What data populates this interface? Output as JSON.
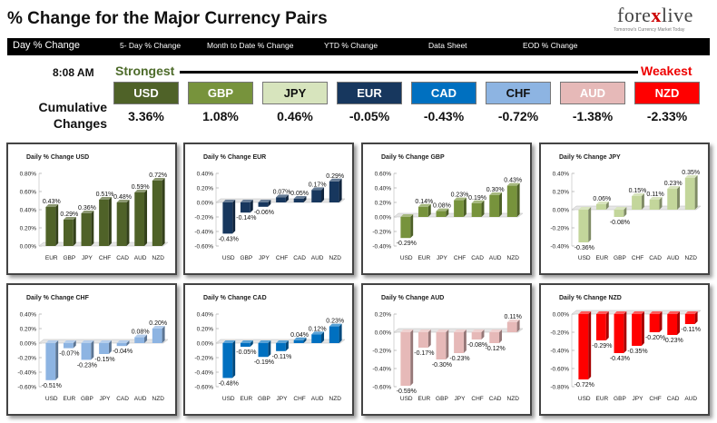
{
  "header": {
    "title": "% Change for the Major Currency Pairs",
    "logo_text_a": "fore",
    "logo_text_x": "x",
    "logo_text_b": "live",
    "logo_sub": "Tomorrow's Currency Market Today"
  },
  "nav": {
    "items": [
      "Day % Change",
      "5- Day % Change",
      "Month to Date % Change",
      "YTD % Change",
      "Data Sheet",
      "EOD % Change"
    ]
  },
  "summary": {
    "time": "8:08 AM",
    "strongest": "Strongest",
    "weakest": "Weakest",
    "cumulative_label_1": "Cumulative",
    "cumulative_label_2": "Changes",
    "currencies": [
      {
        "name": "USD",
        "value": "3.36%",
        "bg": "#4f6228",
        "fg": "#ffffff"
      },
      {
        "name": "GBP",
        "value": "1.08%",
        "bg": "#77933c",
        "fg": "#ffffff"
      },
      {
        "name": "JPY",
        "value": "0.46%",
        "bg": "#d7e4bd",
        "fg": "#111111"
      },
      {
        "name": "EUR",
        "value": "-0.05%",
        "bg": "#17375e",
        "fg": "#ffffff"
      },
      {
        "name": "CAD",
        "value": "-0.43%",
        "bg": "#0070c0",
        "fg": "#ffffff"
      },
      {
        "name": "CHF",
        "value": "-0.72%",
        "bg": "#8db4e2",
        "fg": "#111111"
      },
      {
        "name": "AUD",
        "value": "-1.38%",
        "bg": "#e6b9b8",
        "fg": "#ffffff"
      },
      {
        "name": "NZD",
        "value": "-2.33%",
        "bg": "#ff0000",
        "fg": "#ffffff"
      }
    ]
  },
  "chart_data": [
    {
      "type": "bar",
      "title": "Daily % Change USD",
      "color": "#4f6228",
      "categories": [
        "EUR",
        "GBP",
        "JPY",
        "CHF",
        "CAD",
        "AUD",
        "NZD"
      ],
      "values": [
        0.43,
        0.29,
        0.36,
        0.51,
        0.48,
        0.59,
        0.72
      ],
      "labels": [
        "0.43%",
        "0.29%",
        "0.36%",
        "0.51%",
        "0.48%",
        "0.59%",
        "0.72%"
      ],
      "ylim": [
        0,
        0.8
      ],
      "ticks": [
        "0.00%",
        "0.20%",
        "0.40%",
        "0.60%",
        "0.80%"
      ],
      "tick_values": [
        0,
        0.2,
        0.4,
        0.6,
        0.8
      ]
    },
    {
      "type": "bar",
      "title": "Daily % Change EUR",
      "color": "#17375e",
      "categories": [
        "USD",
        "GBP",
        "JPY",
        "CHF",
        "CAD",
        "AUD",
        "NZD"
      ],
      "values": [
        -0.43,
        -0.14,
        -0.06,
        0.07,
        0.05,
        0.17,
        0.29
      ],
      "labels": [
        "-0.43%",
        "-0.14%",
        "-0.06%",
        "0.07%",
        "0.05%",
        "0.17%",
        "0.29%"
      ],
      "ylim": [
        -0.6,
        0.4
      ],
      "ticks": [
        "-0.60%",
        "-0.40%",
        "-0.20%",
        "0.00%",
        "0.20%",
        "0.40%"
      ],
      "tick_values": [
        -0.6,
        -0.4,
        -0.2,
        0,
        0.2,
        0.4
      ]
    },
    {
      "type": "bar",
      "title": "Daily % Change GBP",
      "color": "#77933c",
      "categories": [
        "USD",
        "EUR",
        "JPY",
        "CHF",
        "CAD",
        "AUD",
        "NZD"
      ],
      "values": [
        -0.29,
        0.14,
        0.08,
        0.23,
        0.19,
        0.3,
        0.43
      ],
      "labels": [
        "-0.29%",
        "0.14%",
        "0.08%",
        "0.23%",
        "0.19%",
        "0.30%",
        "0.43%"
      ],
      "ylim": [
        -0.4,
        0.6
      ],
      "ticks": [
        "-0.40%",
        "-0.20%",
        "0.00%",
        "0.20%",
        "0.40%",
        "0.60%"
      ],
      "tick_values": [
        -0.4,
        -0.2,
        0,
        0.2,
        0.4,
        0.6
      ]
    },
    {
      "type": "bar",
      "title": "Daily % Change JPY",
      "color": "#c3d69b",
      "categories": [
        "USD",
        "EUR",
        "GBP",
        "CHF",
        "CAD",
        "AUD",
        "NZD"
      ],
      "values": [
        -0.36,
        0.06,
        -0.08,
        0.15,
        0.11,
        0.23,
        0.35
      ],
      "labels": [
        "-0.36%",
        "0.06%",
        "-0.08%",
        "0.15%",
        "0.11%",
        "0.23%",
        "0.35%"
      ],
      "ylim": [
        -0.4,
        0.4
      ],
      "ticks": [
        "-0.40%",
        "-0.20%",
        "0.00%",
        "0.20%",
        "0.40%"
      ],
      "tick_values": [
        -0.4,
        -0.2,
        0,
        0.2,
        0.4
      ]
    },
    {
      "type": "bar",
      "title": "Daily % Change CHF",
      "color": "#8db4e2",
      "categories": [
        "USD",
        "EUR",
        "GBP",
        "JPY",
        "CAD",
        "AUD",
        "NZD"
      ],
      "values": [
        -0.51,
        -0.07,
        -0.23,
        -0.15,
        -0.04,
        0.08,
        0.2
      ],
      "labels": [
        "-0.51%",
        "-0.07%",
        "-0.23%",
        "-0.15%",
        "-0.04%",
        "0.08%",
        "0.20%"
      ],
      "ylim": [
        -0.6,
        0.4
      ],
      "ticks": [
        "-0.60%",
        "-0.40%",
        "-0.20%",
        "0.00%",
        "0.20%",
        "0.40%"
      ],
      "tick_values": [
        -0.6,
        -0.4,
        -0.2,
        0,
        0.2,
        0.4
      ]
    },
    {
      "type": "bar",
      "title": "Daily % Change CAD",
      "color": "#0070c0",
      "categories": [
        "USD",
        "EUR",
        "GBP",
        "JPY",
        "CHF",
        "AUD",
        "NZD"
      ],
      "values": [
        -0.48,
        -0.05,
        -0.19,
        -0.11,
        0.04,
        0.12,
        0.23
      ],
      "labels": [
        "-0.48%",
        "-0.05%",
        "-0.19%",
        "-0.11%",
        "0.04%",
        "0.12%",
        "0.23%"
      ],
      "ylim": [
        -0.6,
        0.4
      ],
      "ticks": [
        "-0.60%",
        "-0.40%",
        "-0.20%",
        "0.00%",
        "0.20%",
        "0.40%"
      ],
      "tick_values": [
        -0.6,
        -0.4,
        -0.2,
        0,
        0.2,
        0.4
      ]
    },
    {
      "type": "bar",
      "title": "Daily % Change AUD",
      "color": "#e6b9b8",
      "categories": [
        "USD",
        "EUR",
        "GBP",
        "JPY",
        "CHF",
        "CAD",
        "NZD"
      ],
      "values": [
        -0.59,
        -0.17,
        -0.3,
        -0.23,
        -0.08,
        -0.12,
        0.11
      ],
      "labels": [
        "-0.59%",
        "-0.17%",
        "-0.30%",
        "-0.23%",
        "-0.08%",
        "-0.12%",
        "0.11%"
      ],
      "ylim": [
        -0.6,
        0.2
      ],
      "ticks": [
        "-0.60%",
        "-0.40%",
        "-0.20%",
        "0.00%",
        "0.20%"
      ],
      "tick_values": [
        -0.6,
        -0.4,
        -0.2,
        0,
        0.2
      ]
    },
    {
      "type": "bar",
      "title": "Daily % Change NZD",
      "color": "#ff0000",
      "categories": [
        "USD",
        "EUR",
        "GBP",
        "JPY",
        "CHF",
        "CAD",
        "AUD"
      ],
      "values": [
        -0.72,
        -0.29,
        -0.43,
        -0.35,
        -0.2,
        -0.23,
        -0.11
      ],
      "labels": [
        "-0.72%",
        "-0.29%",
        "-0.43%",
        "-0.35%",
        "-0.20%",
        "-0.23%",
        "-0.11%"
      ],
      "ylim": [
        -0.8,
        0
      ],
      "ticks": [
        "-0.80%",
        "-0.60%",
        "-0.40%",
        "-0.20%",
        "0.00%"
      ],
      "tick_values": [
        -0.8,
        -0.6,
        -0.4,
        -0.2,
        0
      ]
    }
  ]
}
